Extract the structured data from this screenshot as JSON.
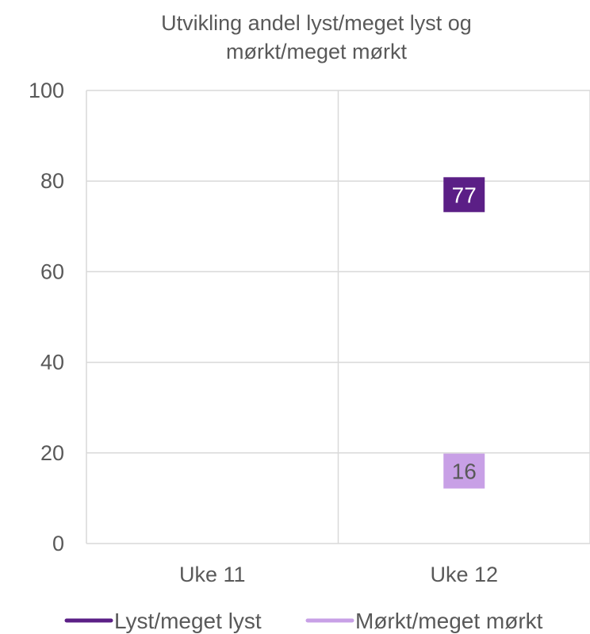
{
  "chart_data": {
    "type": "line",
    "title_lines": [
      "Utvikling andel lyst/meget lyst og",
      "mørkt/meget mørkt"
    ],
    "categories": [
      "Uke 11",
      "Uke 12"
    ],
    "ylim": [
      0,
      100
    ],
    "yticks": [
      0,
      20,
      40,
      60,
      80,
      100
    ],
    "grid": true,
    "legend_position": "bottom",
    "series": [
      {
        "name": "Lyst/meget lyst",
        "values": [
          null,
          77
        ],
        "color": "#5b1f86",
        "label_text_color": "#ffffff"
      },
      {
        "name": "Mørkt/meget mørkt",
        "values": [
          null,
          16
        ],
        "color": "#c8a0e6",
        "label_text_color": "#595959"
      }
    ]
  }
}
